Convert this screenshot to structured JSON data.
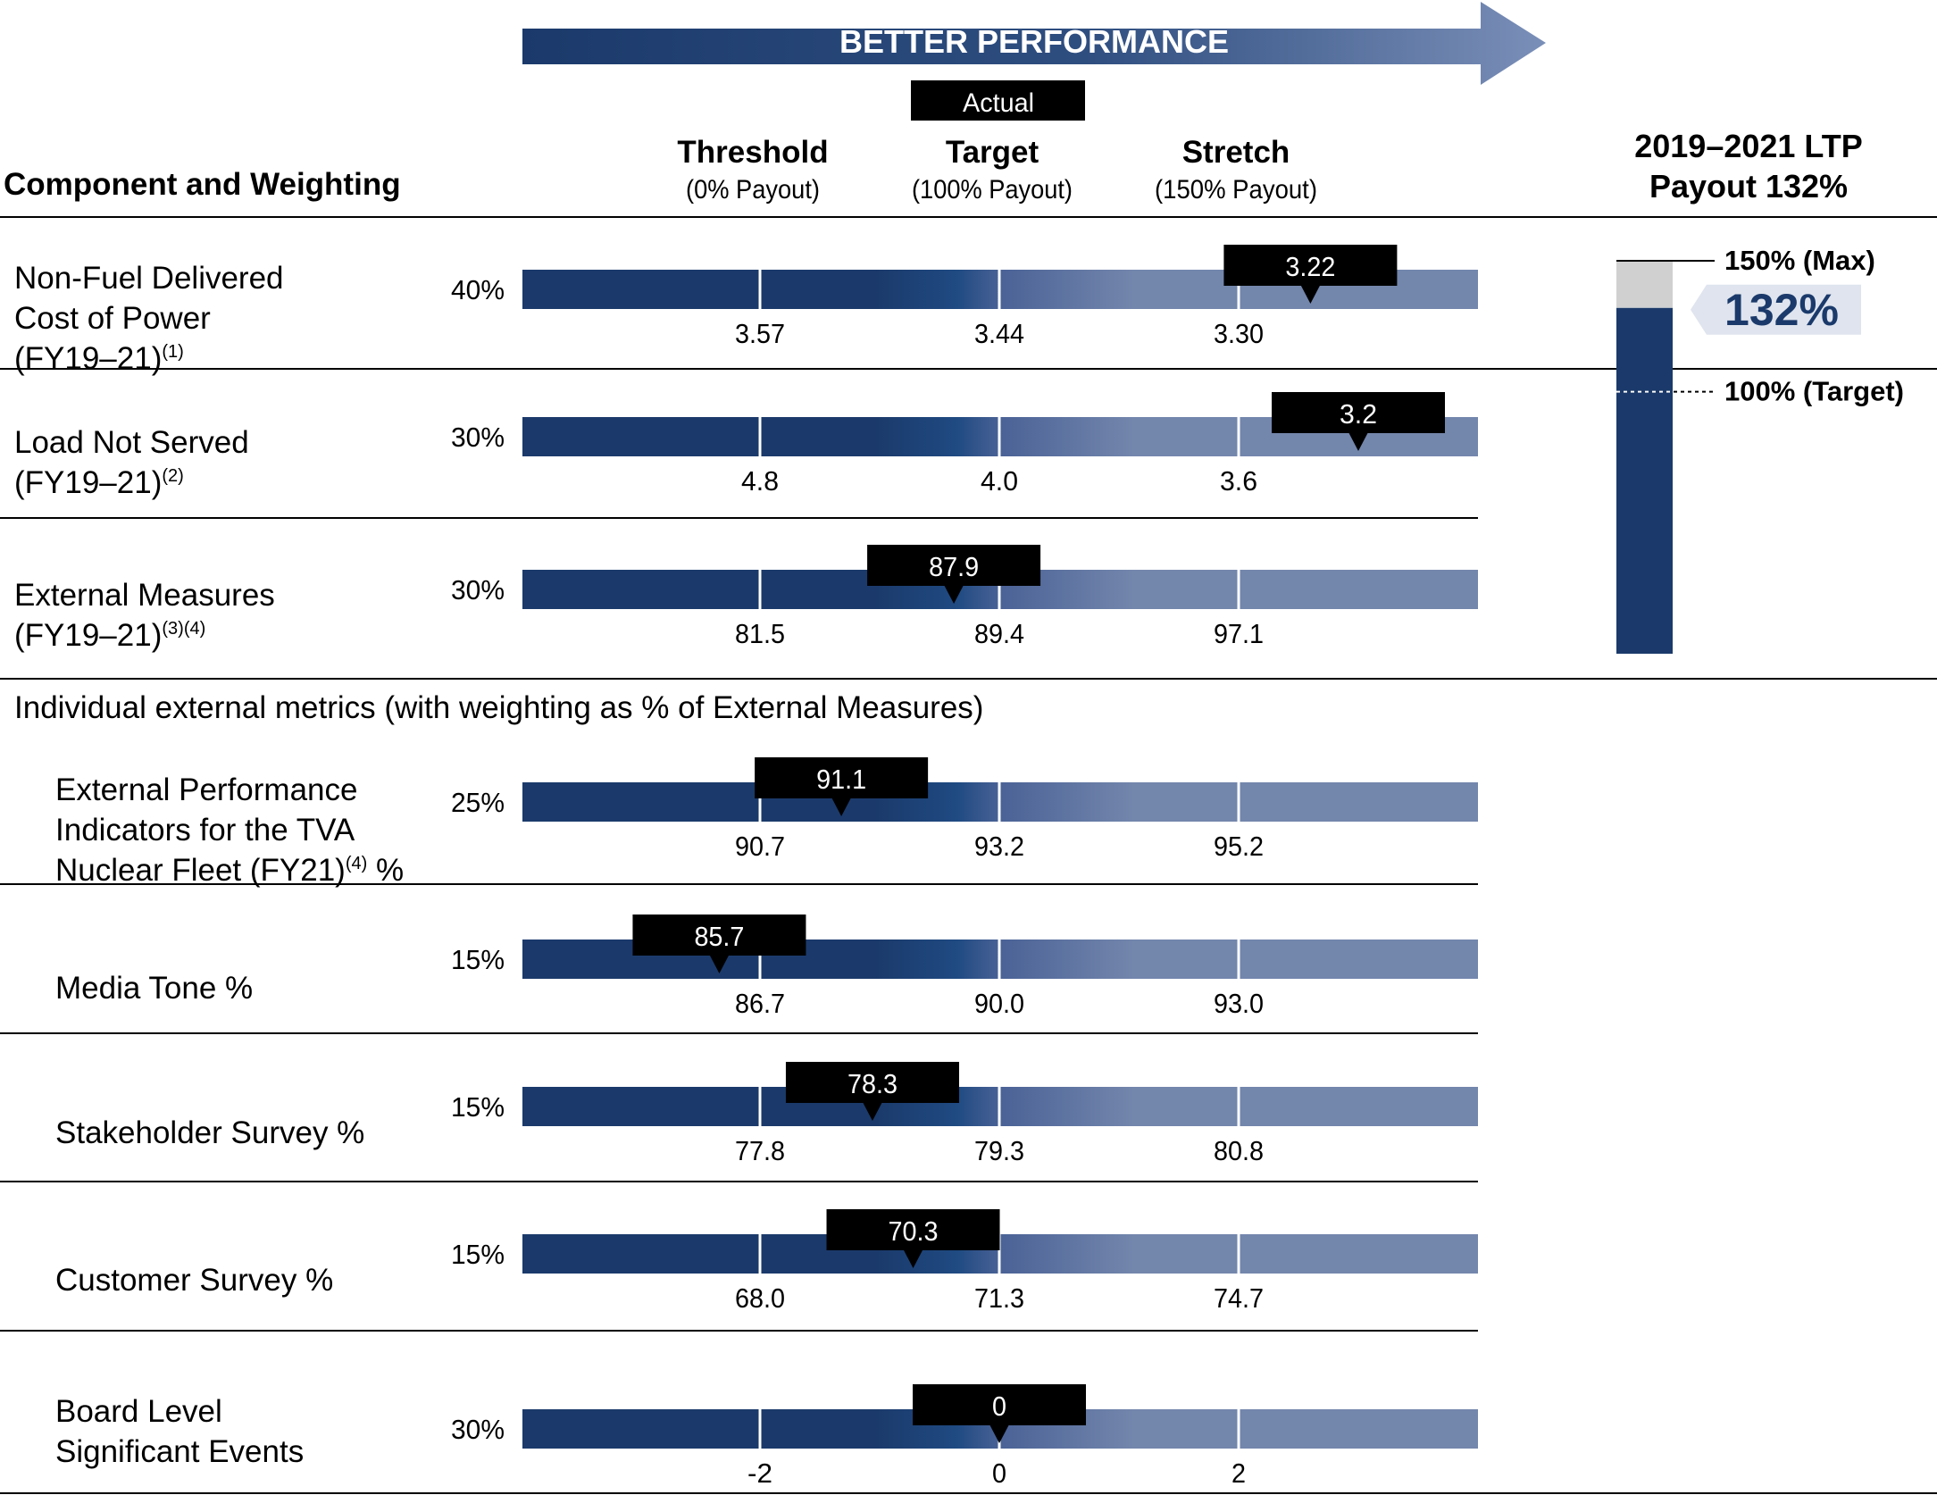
{
  "colors": {
    "navy": "#1b3a6b",
    "mid_blue": "#2a5a94",
    "light_blue": "#7386ac",
    "grey": "#d0d0d0",
    "black": "#000000"
  },
  "header": {
    "arrow_label": "BETTER PERFORMANCE",
    "actual_label": "Actual",
    "component_heading": "Component and Weighting",
    "columns": [
      {
        "title": "Threshold",
        "sub": "(0% Payout)"
      },
      {
        "title": "Target",
        "sub": "(100% Payout)"
      },
      {
        "title": "Stretch",
        "sub": "(150% Payout)"
      }
    ],
    "ltp_title_line1": "2019–2021 LTP",
    "ltp_title_line2": "Payout 132%"
  },
  "subsection_heading": "Individual external metrics (with weighting as % of External Measures)",
  "chart_data": {
    "type": "bar",
    "metrics": [
      {
        "label_lines": [
          "Non-Fuel Delivered",
          "Cost of Power",
          "(FY19–21)"
        ],
        "sup": "(1)",
        "weight": "40%",
        "threshold": "3.57",
        "target": "3.44",
        "stretch": "3.30",
        "actual": "3.22",
        "actual_pos": 1.3
      },
      {
        "label_lines": [
          "Load Not Served",
          "(FY19–21)"
        ],
        "sup": "(2)",
        "weight": "30%",
        "threshold": "4.8",
        "target": "4.0",
        "stretch": "3.6",
        "actual": "3.2",
        "actual_pos": 1.5
      },
      {
        "label_lines": [
          "External Measures",
          "(FY19–21)"
        ],
        "sup": "(3)(4)",
        "weight": "30%",
        "threshold": "81.5",
        "target": "89.4",
        "stretch": "97.1",
        "actual": "87.9",
        "actual_pos": -0.19
      },
      {
        "label_lines": [
          "External Performance",
          "Indicators for the TVA",
          "Nuclear Fleet (FY21)"
        ],
        "sup": "(4)",
        "suffix": " %",
        "weight": "25%",
        "threshold": "90.7",
        "target": "93.2",
        "stretch": "95.2",
        "actual": "91.1",
        "actual_pos": -0.66
      },
      {
        "label_lines": [
          "Media Tone %"
        ],
        "weight": "15%",
        "threshold": "86.7",
        "target": "90.0",
        "stretch": "93.0",
        "actual": "85.7",
        "actual_pos": -1.17
      },
      {
        "label_lines": [
          "Stakeholder Survey %"
        ],
        "weight": "15%",
        "threshold": "77.8",
        "target": "79.3",
        "stretch": "80.8",
        "actual": "78.3",
        "actual_pos": -0.53
      },
      {
        "label_lines": [
          "Customer Survey %"
        ],
        "weight": "15%",
        "threshold": "68.0",
        "target": "71.3",
        "stretch": "74.7",
        "actual": "70.3",
        "actual_pos": -0.36
      },
      {
        "label_lines": [
          "Board Level",
          "Significant Events"
        ],
        "weight": "30%",
        "threshold": "-2",
        "target": "0",
        "stretch": "2",
        "actual": "0",
        "actual_pos": 0.0
      }
    ],
    "payout": {
      "value_label": "132%",
      "value": 132,
      "max_label": "150% (Max)",
      "max": 150,
      "target_label": "100% (Target)",
      "target": 100
    }
  }
}
